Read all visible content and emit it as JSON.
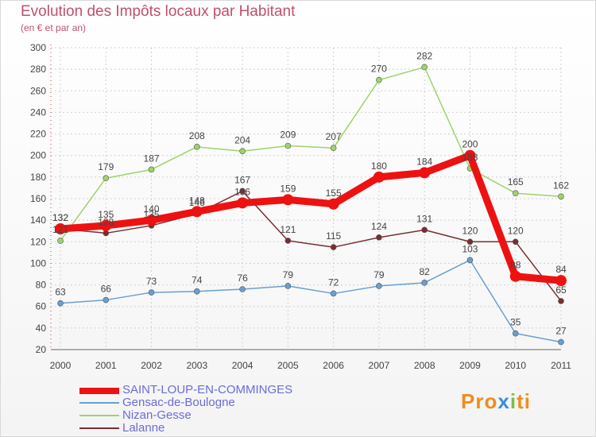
{
  "chart_data": {
    "type": "line",
    "title": "Evolution des Impôts locaux par Habitant",
    "subtitle": "(en € et par an)",
    "x": [
      "2000",
      "2001",
      "2002",
      "2003",
      "2004",
      "2005",
      "2006",
      "2007",
      "2008",
      "2009",
      "2010",
      "2011"
    ],
    "ylim": [
      20,
      300
    ],
    "yticks": [
      "20",
      "40",
      "60",
      "80",
      "100",
      "120",
      "140",
      "160",
      "180",
      "200",
      "220",
      "240",
      "260",
      "280",
      "300"
    ],
    "series": [
      {
        "name": "SAINT-LOUP-EN-COMMINGES",
        "color": "#ee1111",
        "values": [
          132,
          135,
          140,
          148,
          156,
          159,
          155,
          180,
          184,
          200,
          88,
          84
        ],
        "labels": [
          "132",
          "135",
          "140",
          "148",
          "156",
          "159",
          "155",
          "180",
          "184",
          "200",
          "88",
          "84"
        ]
      },
      {
        "name": "Gensac-de-Boulogne",
        "color": "#6a9fd0",
        "values": [
          63,
          66,
          73,
          74,
          76,
          79,
          72,
          79,
          82,
          103,
          35,
          27
        ],
        "labels": [
          "63",
          "66",
          "73",
          "74",
          "76",
          "79",
          "72",
          "79",
          "82",
          "103",
          "35",
          "27"
        ]
      },
      {
        "name": "Nizan-Gesse",
        "color": "#9dd46a",
        "values": [
          121,
          179,
          187,
          208,
          204,
          209,
          207,
          270,
          282,
          188,
          165,
          162
        ],
        "labels": [
          "121",
          "179",
          "187",
          "208",
          "204",
          "209",
          "207",
          "270",
          "282",
          "188",
          "165",
          "162"
        ]
      },
      {
        "name": "Lalanne",
        "color": "#7a2e32",
        "values": [
          132,
          128,
          135,
          146,
          167,
          121,
          115,
          124,
          131,
          120,
          120,
          65
        ],
        "labels": [
          "132",
          "128",
          "135",
          "146",
          "167",
          "121",
          "115",
          "124",
          "131",
          "120",
          "120",
          "65"
        ]
      }
    ]
  },
  "legend": {
    "items": [
      {
        "label": "SAINT-LOUP-EN-COMMINGES"
      },
      {
        "label": "Gensac-de-Boulogne"
      },
      {
        "label": "Nizan-Gesse"
      },
      {
        "label": "Lalanne"
      }
    ]
  },
  "branding": {
    "logo_text": "Proxiti"
  }
}
